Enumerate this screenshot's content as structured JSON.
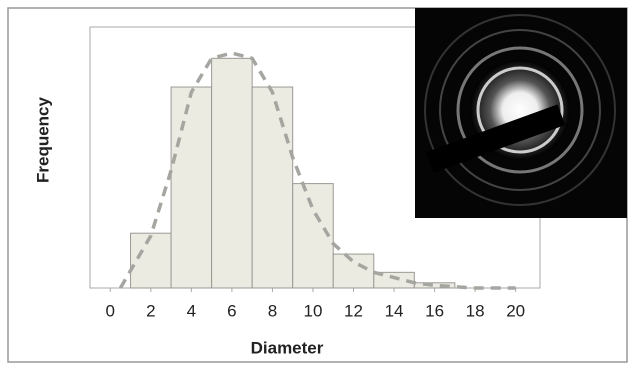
{
  "chart_data": {
    "type": "histogram",
    "xlabel": "Diameter",
    "ylabel": "Frequency",
    "bins": [
      1,
      3,
      5,
      7,
      9,
      11,
      13,
      15,
      17
    ],
    "counts": [
      21,
      77,
      88,
      77,
      40,
      13,
      6,
      2
    ],
    "color": "#ecebe1",
    "curve": {
      "x": [
        0.5,
        2,
        3,
        4,
        5,
        6,
        7,
        8,
        9,
        10,
        11,
        12,
        13,
        14,
        15,
        16,
        17,
        18,
        20
      ],
      "y": [
        0,
        20,
        45,
        75,
        88,
        90,
        88,
        75,
        50,
        30,
        17,
        10,
        6,
        4,
        2,
        1,
        0.5,
        0,
        0
      ],
      "color": "#a6a6a0",
      "dashed": true
    },
    "xlim": [
      -1,
      21.2
    ],
    "ylim": [
      0,
      100
    ],
    "xticks": [
      0,
      2,
      4,
      6,
      8,
      10,
      12,
      14,
      16,
      18,
      20
    ]
  }
}
